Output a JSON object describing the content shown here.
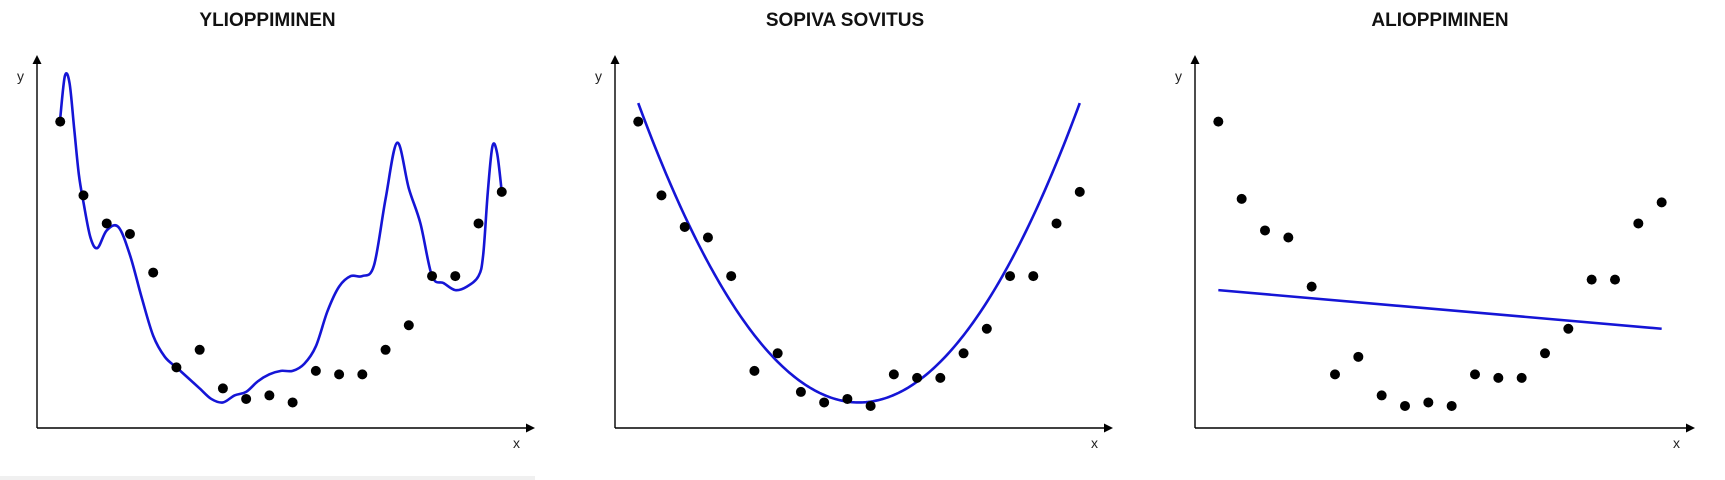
{
  "colors": {
    "curve": "#1515d6",
    "points": "#000000",
    "axes": "#000000"
  },
  "axis_labels": {
    "x": "x",
    "y": "y"
  },
  "chart_data": [
    {
      "type": "scatter",
      "title": "YLIOPPIMINEN",
      "xlabel": "x",
      "ylabel": "y",
      "xlim": [
        0,
        21
      ],
      "ylim": [
        0,
        10
      ],
      "points_x": [
        1,
        2,
        3,
        4,
        5,
        6,
        7,
        8,
        9,
        10,
        11,
        12,
        13,
        14,
        15,
        16,
        17,
        18,
        19,
        20
      ],
      "points_y": [
        8.5,
        6.4,
        5.6,
        5.3,
        4.2,
        1.5,
        2.0,
        0.9,
        0.6,
        0.7,
        0.5,
        1.4,
        1.3,
        1.3,
        2.0,
        2.7,
        4.1,
        4.1,
        5.6,
        6.5
      ],
      "fit": {
        "kind": "overfit",
        "x": [
          1.0,
          1.2,
          1.4,
          1.6,
          1.8,
          2.0,
          2.3,
          2.6,
          3.0,
          3.5,
          4.0,
          4.5,
          5.0,
          5.5,
          6.0,
          6.5,
          7.0,
          7.5,
          8.0,
          8.5,
          9.0,
          9.5,
          10.0,
          10.5,
          11.0,
          11.5,
          12.0,
          12.5,
          13.0,
          13.5,
          14.0,
          14.5,
          15.0,
          15.5,
          16.0,
          16.5,
          17.0,
          17.5,
          18.0,
          18.5,
          19.0,
          19.2,
          19.4,
          19.6,
          19.8,
          20.0
        ],
        "y": [
          8.6,
          9.8,
          9.6,
          8.3,
          7.0,
          6.2,
          5.2,
          4.9,
          5.4,
          5.5,
          4.7,
          3.5,
          2.4,
          1.8,
          1.5,
          1.2,
          0.9,
          0.6,
          0.5,
          0.7,
          0.8,
          1.1,
          1.3,
          1.4,
          1.4,
          1.6,
          2.1,
          3.1,
          3.8,
          4.1,
          4.1,
          4.4,
          6.3,
          7.9,
          6.6,
          5.6,
          4.1,
          3.9,
          3.7,
          3.8,
          4.1,
          4.7,
          6.5,
          7.8,
          7.6,
          6.5
        ]
      }
    },
    {
      "type": "scatter",
      "title": "SOPIVA SOVITUS",
      "xlabel": "x",
      "ylabel": "y",
      "xlim": [
        0,
        21
      ],
      "ylim": [
        0,
        10
      ],
      "points_x": [
        1,
        2,
        3,
        4,
        5,
        6,
        7,
        8,
        9,
        10,
        11,
        12,
        13,
        14,
        15,
        16,
        17,
        18,
        19,
        20
      ],
      "points_y": [
        8.5,
        6.4,
        5.5,
        5.2,
        4.1,
        1.4,
        1.9,
        0.8,
        0.5,
        0.6,
        0.4,
        1.3,
        1.2,
        1.2,
        1.9,
        2.6,
        4.1,
        4.1,
        5.6,
        6.5
      ],
      "fit": {
        "kind": "quadratic",
        "a": 0.0945,
        "h": 10.5,
        "k": 0.5
      }
    },
    {
      "type": "scatter",
      "title": "ALIOPPIMINEN",
      "xlabel": "x",
      "ylabel": "y",
      "xlim": [
        0,
        21
      ],
      "ylim": [
        0,
        10
      ],
      "points_x": [
        1,
        2,
        3,
        4,
        5,
        6,
        7,
        8,
        9,
        10,
        11,
        12,
        13,
        14,
        15,
        16,
        17,
        18,
        19,
        20
      ],
      "points_y": [
        8.5,
        6.3,
        5.4,
        5.2,
        3.8,
        1.3,
        1.8,
        0.7,
        0.4,
        0.5,
        0.4,
        1.3,
        1.2,
        1.2,
        1.9,
        2.6,
        4.0,
        4.0,
        5.6,
        6.2
      ],
      "fit": {
        "kind": "linear",
        "x": [
          1,
          20
        ],
        "y": [
          3.7,
          2.6
        ]
      }
    }
  ]
}
